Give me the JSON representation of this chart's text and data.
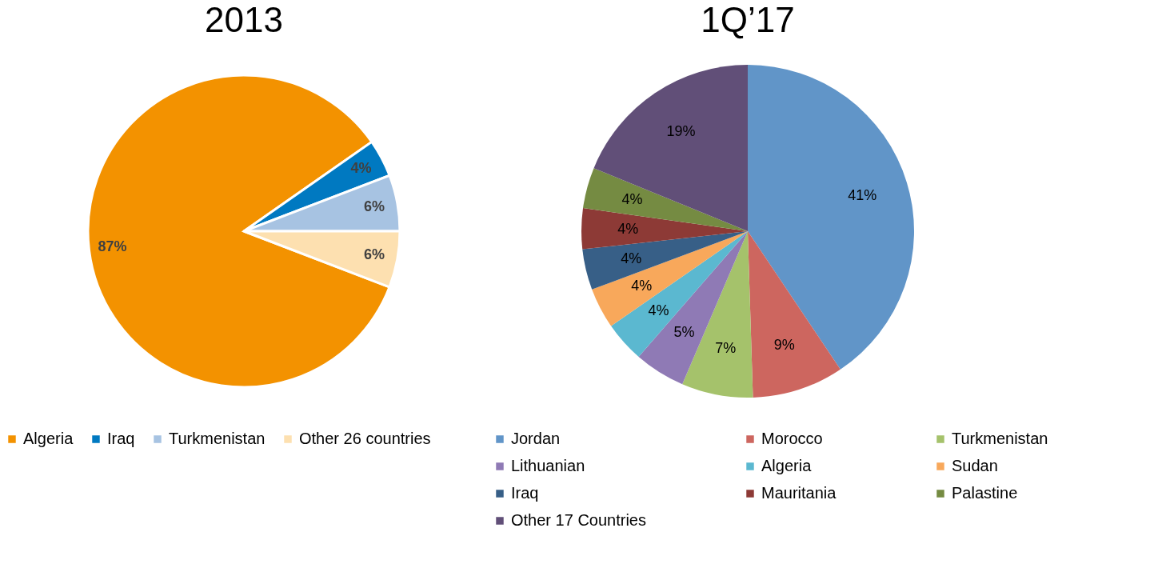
{
  "chart_data": [
    {
      "type": "pie",
      "title": "2013",
      "categories": [
        "Algeria",
        "Iraq",
        "Turkmenistan",
        "Other 26 countries"
      ],
      "values": [
        87,
        4,
        6,
        6
      ],
      "colors": [
        "#f39200",
        "#0079c1",
        "#a7c3e2",
        "#fde0b0"
      ],
      "value_labels": [
        "87%",
        "4%",
        "6%",
        "6%"
      ],
      "legend": "bottom"
    },
    {
      "type": "pie",
      "title": "1Q’17",
      "categories": [
        "Jordan",
        "Morocco",
        "Turkmenistan",
        "Lithuanian",
        "Algeria",
        "Sudan",
        "Iraq",
        "Mauritania",
        "Palastine",
        "Other 17 Countries"
      ],
      "values": [
        41,
        9,
        7,
        5,
        4,
        4,
        4,
        4,
        4,
        19
      ],
      "colors": [
        "#6195c8",
        "#cd665f",
        "#a5c26b",
        "#8f7ab5",
        "#5bb8d0",
        "#f8a85b",
        "#375f87",
        "#8d3a36",
        "#758b42",
        "#614f78"
      ],
      "value_labels": [
        "41%",
        "9%",
        "7%",
        "5%",
        "4%",
        "4%",
        "4%",
        "4%",
        "4%",
        "19%"
      ],
      "legend": "bottom"
    }
  ]
}
